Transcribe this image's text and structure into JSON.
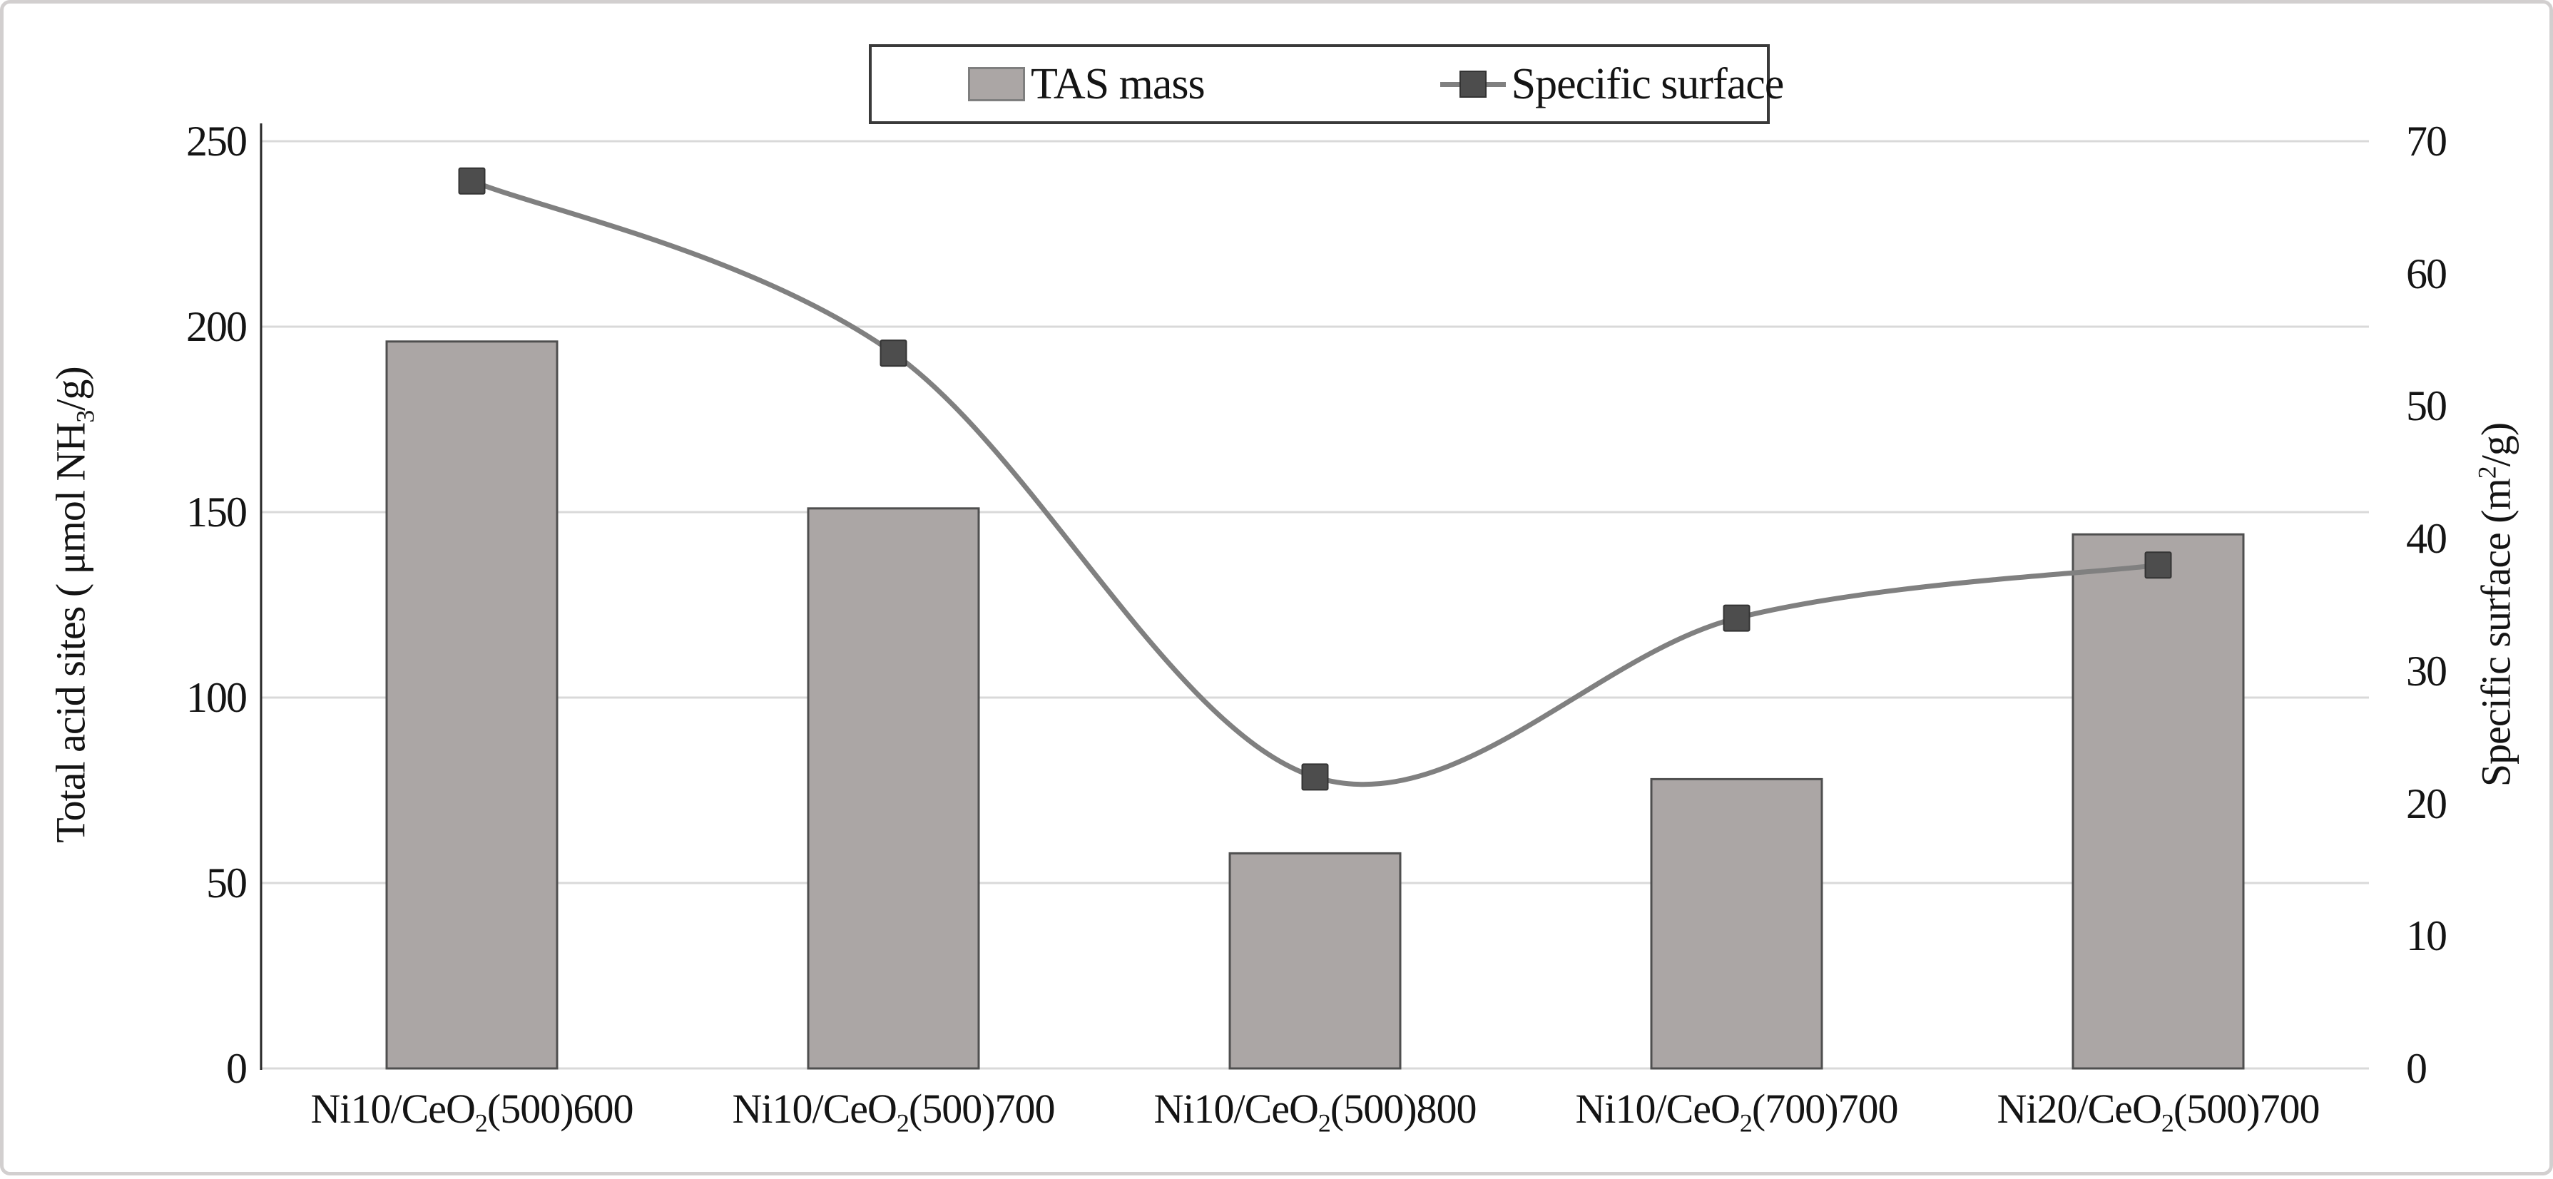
{
  "figure": {
    "background": "#ffffff",
    "border_color": "#d2cfcf"
  },
  "legend": {
    "items": [
      {
        "label": "TAS mass",
        "swatch": "bar-swatch",
        "swatch_color": "#aba6a5"
      },
      {
        "label": "Specific surface",
        "swatch": "line-marker-swatch",
        "line_color": "#808080",
        "marker_color": "#4d4d4d"
      }
    ]
  },
  "chart_data": {
    "type": "combo",
    "subtypes": [
      "bar",
      "line"
    ],
    "categories": [
      "Ni10/CeO2(500)600",
      "Ni10/CeO2(500)700",
      "Ni10/CeO2(500)800",
      "Ni10/CeO2(700)700",
      "Ni20/CeO2(500)700"
    ],
    "categories_rich": [
      {
        "pre": "Ni10/CeO",
        "sub": "2",
        "post": "(500)600"
      },
      {
        "pre": "Ni10/CeO",
        "sub": "2",
        "post": "(500)700"
      },
      {
        "pre": "Ni10/CeO",
        "sub": "2",
        "post": "(500)800"
      },
      {
        "pre": "Ni10/CeO",
        "sub": "2",
        "post": "(700)700"
      },
      {
        "pre": "Ni20/CeO",
        "sub": "2",
        "post": "(500)700"
      }
    ],
    "series": [
      {
        "name": "TAS mass",
        "type": "bar",
        "axis": "left",
        "values": [
          196,
          151,
          58,
          78,
          144
        ],
        "fill": "#aba6a5",
        "border": "#4f4f4f"
      },
      {
        "name": "Specific surface",
        "type": "line",
        "axis": "right",
        "values": [
          67,
          54,
          22,
          34,
          38
        ],
        "smooth": true,
        "line_color": "#808080",
        "marker": "square",
        "marker_color": "#4d4d4d"
      }
    ],
    "left_axis": {
      "title": "Total acid sites ( μmol NH3/g)",
      "title_parts": {
        "pre": "Total acid sites ( μmol NH",
        "sub": "3",
        "post": "/g)"
      },
      "min": 0,
      "max": 250,
      "tick_step": 50,
      "ticks": [
        0,
        50,
        100,
        150,
        200,
        250
      ]
    },
    "right_axis": {
      "title": "Specific surface (m2/g)",
      "title_parts": {
        "pre": "Specific surface (m",
        "sup": "2",
        "post": "/g)"
      },
      "min": 0,
      "max": 70,
      "tick_step": 10,
      "ticks": [
        0,
        10,
        20,
        30,
        40,
        50,
        60,
        70
      ]
    },
    "gridlines": {
      "show": true,
      "orientation": "horizontal",
      "follow": "left",
      "color": "#d9d9d9"
    },
    "axis_line_color": "#262626",
    "legend_position": "top-center"
  }
}
